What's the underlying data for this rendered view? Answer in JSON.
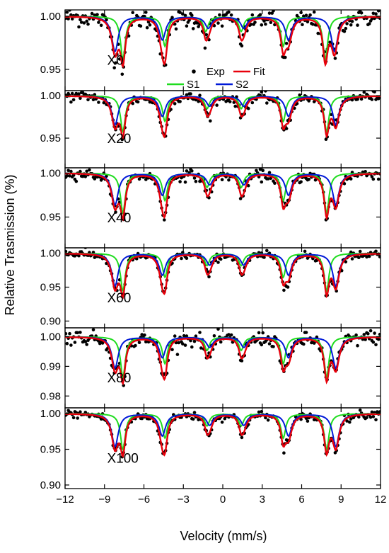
{
  "chart_data": {
    "type": "line",
    "xlabel": "Velocity (mm/s)",
    "ylabel": "Relative Trasmission (%)",
    "xlim": [
      -12,
      12
    ],
    "xticks": [
      -12,
      -9,
      -6,
      -3,
      0,
      3,
      6,
      9,
      12
    ],
    "legend": {
      "placement": "inside top panel, center",
      "entries": [
        {
          "name": "Exp",
          "marker": "dot",
          "color": "#000000"
        },
        {
          "name": "Fit",
          "marker": "line",
          "color": "#e8000b"
        },
        {
          "name": "S1",
          "marker": "line",
          "color": "#1fdc1f"
        },
        {
          "name": "S2",
          "marker": "line",
          "color": "#0019d8"
        }
      ]
    },
    "colors": {
      "exp": "#000000",
      "fit": "#e8000b",
      "s1": "#1fdc1f",
      "s2": "#0019d8"
    },
    "panels": [
      {
        "label": "X0",
        "ylim": [
          0.93,
          1.006
        ],
        "ytick_labels": [
          "1.00",
          "0.95"
        ],
        "yticks": [
          1.0,
          0.95
        ],
        "s1_lines": [
          {
            "pos": -7.6,
            "depth": 0.04
          },
          {
            "pos": -4.4,
            "depth": 0.028
          },
          {
            "pos": -1.3,
            "depth": 0.014
          },
          {
            "pos": 1.4,
            "depth": 0.014
          },
          {
            "pos": 4.6,
            "depth": 0.028
          },
          {
            "pos": 7.8,
            "depth": 0.04
          }
        ],
        "s2_lines": [
          {
            "pos": -8.2,
            "depth": 0.033
          },
          {
            "pos": -4.6,
            "depth": 0.022
          },
          {
            "pos": -1.1,
            "depth": 0.011
          },
          {
            "pos": 1.6,
            "depth": 0.011
          },
          {
            "pos": 5.0,
            "depth": 0.022
          },
          {
            "pos": 8.5,
            "depth": 0.033
          }
        ],
        "s1_width": 0.45,
        "s2_width": 0.6,
        "noise": 0.0045
      },
      {
        "label": "X20",
        "ylim": [
          0.915,
          1.006
        ],
        "ytick_labels": [
          "1.00",
          "0.95"
        ],
        "yticks": [
          1.0,
          0.95
        ],
        "s1_lines": [
          {
            "pos": -7.6,
            "depth": 0.042
          },
          {
            "pos": -4.4,
            "depth": 0.03
          },
          {
            "pos": -1.2,
            "depth": 0.015
          },
          {
            "pos": 1.4,
            "depth": 0.015
          },
          {
            "pos": 4.6,
            "depth": 0.03
          },
          {
            "pos": 7.9,
            "depth": 0.042
          }
        ],
        "s2_lines": [
          {
            "pos": -8.2,
            "depth": 0.034
          },
          {
            "pos": -4.6,
            "depth": 0.024
          },
          {
            "pos": -1.0,
            "depth": 0.012
          },
          {
            "pos": 1.6,
            "depth": 0.012
          },
          {
            "pos": 5.0,
            "depth": 0.024
          },
          {
            "pos": 8.6,
            "depth": 0.034
          }
        ],
        "s1_width": 0.45,
        "s2_width": 0.6,
        "noise": 0.003
      },
      {
        "label": "X40",
        "ylim": [
          0.915,
          1.006
        ],
        "ytick_labels": [
          "1.00",
          "0.95"
        ],
        "yticks": [
          1.0,
          0.95
        ],
        "s1_lines": [
          {
            "pos": -7.6,
            "depth": 0.045
          },
          {
            "pos": -4.4,
            "depth": 0.031
          },
          {
            "pos": -1.2,
            "depth": 0.016
          },
          {
            "pos": 1.4,
            "depth": 0.016
          },
          {
            "pos": 4.6,
            "depth": 0.031
          },
          {
            "pos": 7.9,
            "depth": 0.045
          }
        ],
        "s2_lines": [
          {
            "pos": -8.2,
            "depth": 0.036
          },
          {
            "pos": -4.6,
            "depth": 0.025
          },
          {
            "pos": -1.0,
            "depth": 0.013
          },
          {
            "pos": 1.6,
            "depth": 0.013
          },
          {
            "pos": 5.0,
            "depth": 0.025
          },
          {
            "pos": 8.6,
            "depth": 0.036
          }
        ],
        "s1_width": 0.45,
        "s2_width": 0.6,
        "noise": 0.003
      },
      {
        "label": "X60",
        "ylim": [
          0.89,
          1.008
        ],
        "ytick_labels": [
          "1.00",
          "0.95",
          "0.90"
        ],
        "yticks": [
          1.0,
          0.95,
          0.9
        ],
        "s1_lines": [
          {
            "pos": -7.6,
            "depth": 0.055
          },
          {
            "pos": -4.4,
            "depth": 0.035
          },
          {
            "pos": -1.2,
            "depth": 0.018
          },
          {
            "pos": 1.4,
            "depth": 0.018
          },
          {
            "pos": 4.6,
            "depth": 0.035
          },
          {
            "pos": 7.9,
            "depth": 0.055
          }
        ],
        "s2_lines": [
          {
            "pos": -8.2,
            "depth": 0.048
          },
          {
            "pos": -4.6,
            "depth": 0.032
          },
          {
            "pos": -1.0,
            "depth": 0.017
          },
          {
            "pos": 1.6,
            "depth": 0.017
          },
          {
            "pos": 5.0,
            "depth": 0.032
          },
          {
            "pos": 8.6,
            "depth": 0.048
          }
        ],
        "s1_width": 0.45,
        "s2_width": 0.6,
        "noise": 0.003
      },
      {
        "label": "X80",
        "ylim": [
          0.976,
          1.003
        ],
        "ytick_labels": [
          "1.00",
          "0.99",
          "0.98"
        ],
        "yticks": [
          1.0,
          0.99,
          0.98
        ],
        "s1_lines": [
          {
            "pos": -7.6,
            "depth": 0.0135
          },
          {
            "pos": -4.4,
            "depth": 0.009
          },
          {
            "pos": -1.2,
            "depth": 0.0045
          },
          {
            "pos": 1.4,
            "depth": 0.0045
          },
          {
            "pos": 4.6,
            "depth": 0.009
          },
          {
            "pos": 7.9,
            "depth": 0.0135
          }
        ],
        "s2_lines": [
          {
            "pos": -8.2,
            "depth": 0.0105
          },
          {
            "pos": -4.6,
            "depth": 0.007
          },
          {
            "pos": -1.0,
            "depth": 0.0035
          },
          {
            "pos": 1.6,
            "depth": 0.0035
          },
          {
            "pos": 5.0,
            "depth": 0.007
          },
          {
            "pos": 8.6,
            "depth": 0.0105
          }
        ],
        "s1_width": 0.45,
        "s2_width": 0.6,
        "noise": 0.0012
      },
      {
        "label": "X100",
        "ylim": [
          0.895,
          1.008
        ],
        "ytick_labels": [
          "1.00",
          "0.95",
          "0.90"
        ],
        "yticks": [
          1.0,
          0.95,
          0.9
        ],
        "s1_lines": [
          {
            "pos": -7.6,
            "depth": 0.05
          },
          {
            "pos": -4.4,
            "depth": 0.034
          },
          {
            "pos": -1.2,
            "depth": 0.017
          },
          {
            "pos": 1.4,
            "depth": 0.017
          },
          {
            "pos": 4.6,
            "depth": 0.034
          },
          {
            "pos": 7.9,
            "depth": 0.05
          }
        ],
        "s2_lines": [
          {
            "pos": -8.2,
            "depth": 0.046
          },
          {
            "pos": -4.6,
            "depth": 0.031
          },
          {
            "pos": -1.0,
            "depth": 0.016
          },
          {
            "pos": 1.6,
            "depth": 0.016
          },
          {
            "pos": 5.0,
            "depth": 0.031
          },
          {
            "pos": 8.6,
            "depth": 0.046
          }
        ],
        "s1_width": 0.45,
        "s2_width": 0.6,
        "noise": 0.003
      }
    ]
  }
}
